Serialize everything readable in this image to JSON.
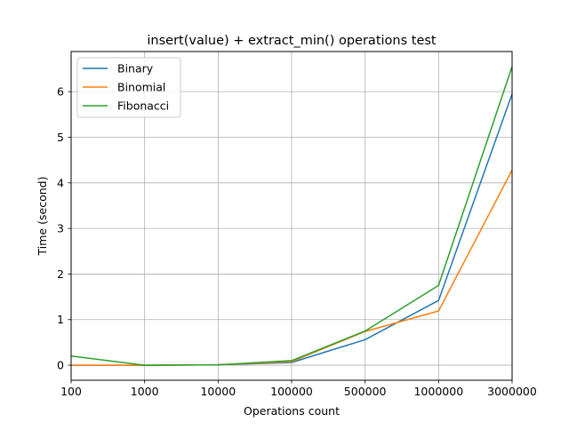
{
  "chart_data": {
    "type": "line",
    "title": "insert(value) + extract_min() operations test",
    "xlabel": "Operations count",
    "ylabel": "Time (second)",
    "categories": [
      "100",
      "1000",
      "10000",
      "100000",
      "500000",
      "1000000",
      "3000000"
    ],
    "yticks": [
      "0",
      "1",
      "2",
      "3",
      "4",
      "5",
      "6"
    ],
    "ylim": [
      -0.33,
      6.88
    ],
    "grid": true,
    "legend_position": "top-left",
    "series": [
      {
        "name": "Binary",
        "color": "#1f77b4",
        "values": [
          0.0,
          0.0,
          0.01,
          0.06,
          0.56,
          1.42,
          5.95
        ]
      },
      {
        "name": "Binomial",
        "color": "#ff7f0e",
        "values": [
          0.0,
          0.0,
          0.01,
          0.08,
          0.74,
          1.19,
          4.28
        ]
      },
      {
        "name": "Fibonacci",
        "color": "#2ca02c",
        "values": [
          0.2,
          0.0,
          0.01,
          0.1,
          0.75,
          1.75,
          6.55
        ]
      }
    ]
  }
}
